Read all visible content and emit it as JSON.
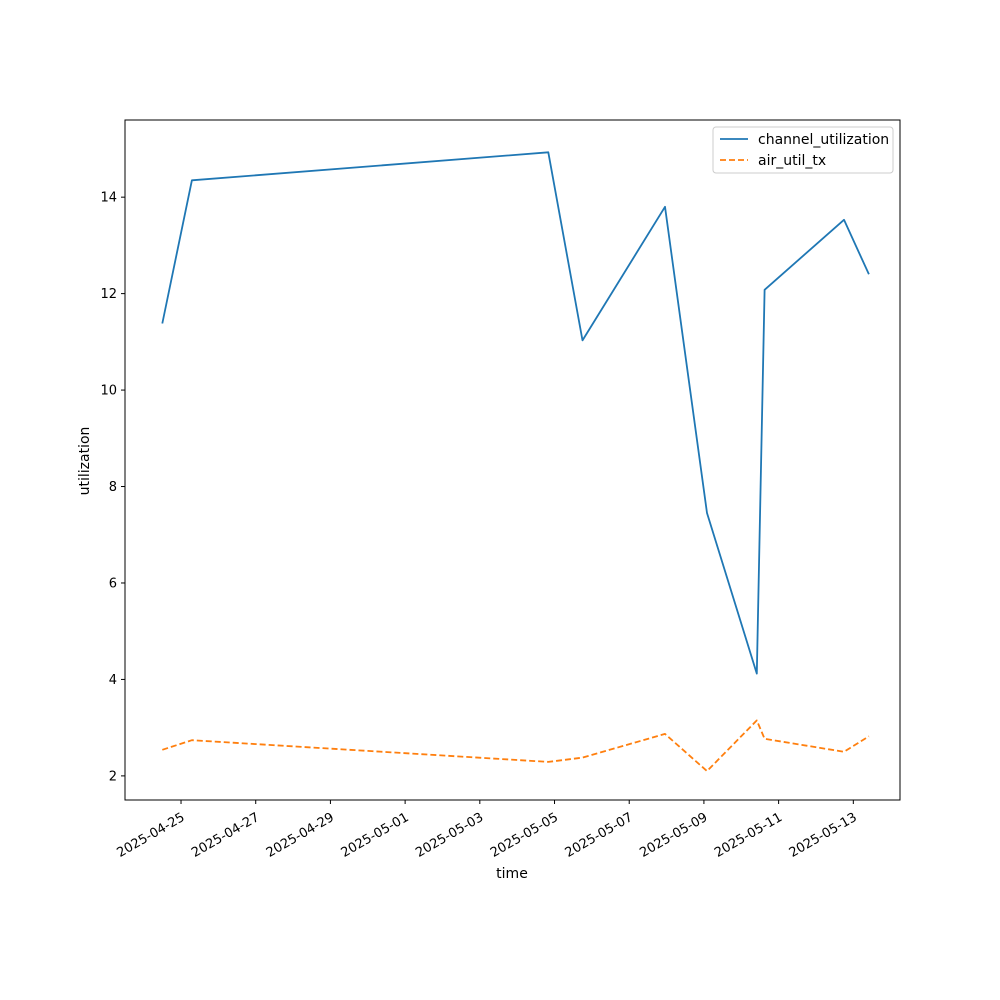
{
  "chart_data": {
    "type": "line",
    "title": "",
    "xlabel": "time",
    "ylabel": "utilization",
    "x_range": [
      "2025-04-23T12:00",
      "2025-05-14T06:00"
    ],
    "ylim": [
      1.5,
      15.6
    ],
    "x_ticks": [
      {
        "date": "2025-04-25",
        "label": "2025-04-25"
      },
      {
        "date": "2025-04-27",
        "label": "2025-04-27"
      },
      {
        "date": "2025-04-29",
        "label": "2025-04-29"
      },
      {
        "date": "2025-05-01",
        "label": "2025-05-01"
      },
      {
        "date": "2025-05-03",
        "label": "2025-05-03"
      },
      {
        "date": "2025-05-05",
        "label": "2025-05-05"
      },
      {
        "date": "2025-05-07",
        "label": "2025-05-07"
      },
      {
        "date": "2025-05-09",
        "label": "2025-05-09"
      },
      {
        "date": "2025-05-11",
        "label": "2025-05-11"
      },
      {
        "date": "2025-05-13",
        "label": "2025-05-13"
      }
    ],
    "y_ticks": [
      {
        "value": 2,
        "label": "2"
      },
      {
        "value": 4,
        "label": "4"
      },
      {
        "value": 6,
        "label": "6"
      },
      {
        "value": 8,
        "label": "8"
      },
      {
        "value": 10,
        "label": "10"
      },
      {
        "value": 12,
        "label": "12"
      },
      {
        "value": 14,
        "label": "14"
      }
    ],
    "legend": {
      "placement": "upper-right"
    },
    "grid": false,
    "series": [
      {
        "name": "channel_utilization",
        "color": "#1f77b4",
        "dash": "solid",
        "points": [
          {
            "x": "2025-04-24T12:00",
            "y": 11.38
          },
          {
            "x": "2025-04-25T07:00",
            "y": 14.35
          },
          {
            "x": "2025-05-04T20:00",
            "y": 14.93
          },
          {
            "x": "2025-05-05T18:00",
            "y": 11.03
          },
          {
            "x": "2025-05-07T23:00",
            "y": 13.8
          },
          {
            "x": "2025-05-09T02:00",
            "y": 7.45
          },
          {
            "x": "2025-05-10T10:00",
            "y": 4.12
          },
          {
            "x": "2025-05-10T15:00",
            "y": 12.08
          },
          {
            "x": "2025-05-12T18:00",
            "y": 13.53
          },
          {
            "x": "2025-05-13T10:00",
            "y": 12.4
          }
        ]
      },
      {
        "name": "air_util_tx",
        "color": "#ff7f0e",
        "dash": "dashed",
        "points": [
          {
            "x": "2025-04-24T12:00",
            "y": 2.54
          },
          {
            "x": "2025-04-25T07:00",
            "y": 2.74
          },
          {
            "x": "2025-05-04T20:00",
            "y": 2.29
          },
          {
            "x": "2025-05-05T18:00",
            "y": 2.38
          },
          {
            "x": "2025-05-07T23:00",
            "y": 2.87
          },
          {
            "x": "2025-05-09T02:00",
            "y": 2.1
          },
          {
            "x": "2025-05-10T10:00",
            "y": 3.15
          },
          {
            "x": "2025-05-10T15:00",
            "y": 2.77
          },
          {
            "x": "2025-05-12T18:00",
            "y": 2.5
          },
          {
            "x": "2025-05-13T10:00",
            "y": 2.82
          }
        ]
      }
    ]
  }
}
